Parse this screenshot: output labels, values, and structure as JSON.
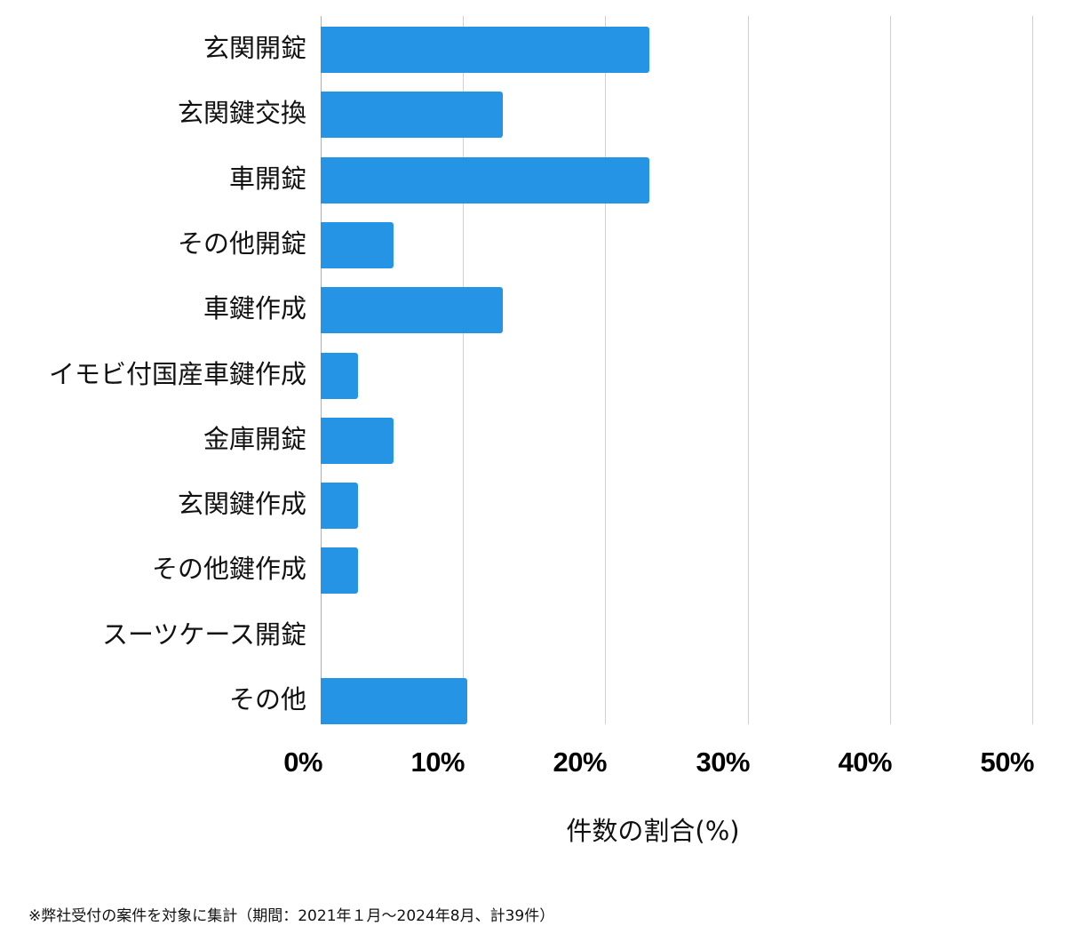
{
  "chart_data": {
    "type": "bar",
    "orientation": "horizontal",
    "categories": [
      "玄関開錠",
      "玄関鍵交換",
      "車開錠",
      "その他開錠",
      "車鍵作成",
      "イモビ付国産車鍵作成",
      "金庫開錠",
      "玄関鍵作成",
      "その他鍵作成",
      "スーツケース開錠",
      "その他"
    ],
    "values": [
      23.1,
      12.8,
      23.1,
      5.1,
      12.8,
      2.6,
      5.1,
      2.6,
      2.6,
      0,
      10.3
    ],
    "title": "",
    "xlabel": "件数の割合(%)",
    "ylabel": "",
    "xlim": [
      0,
      50
    ],
    "xticks": [
      "0%",
      "10%",
      "20%",
      "30%",
      "40%",
      "50%"
    ],
    "grid": true,
    "legend": null,
    "bar_color": "#2594e4",
    "footnote": "※弊社受付の案件を対象に集計（期間：2021年１月～2024年8月、計39件）"
  },
  "axis": {
    "title": "件数の割合(%)",
    "ticks": [
      "0%",
      "10%",
      "20%",
      "30%",
      "40%",
      "50%"
    ]
  },
  "footnote": "※弊社受付の案件を対象に集計（期間：2021年１月～2024年8月、計39件）"
}
